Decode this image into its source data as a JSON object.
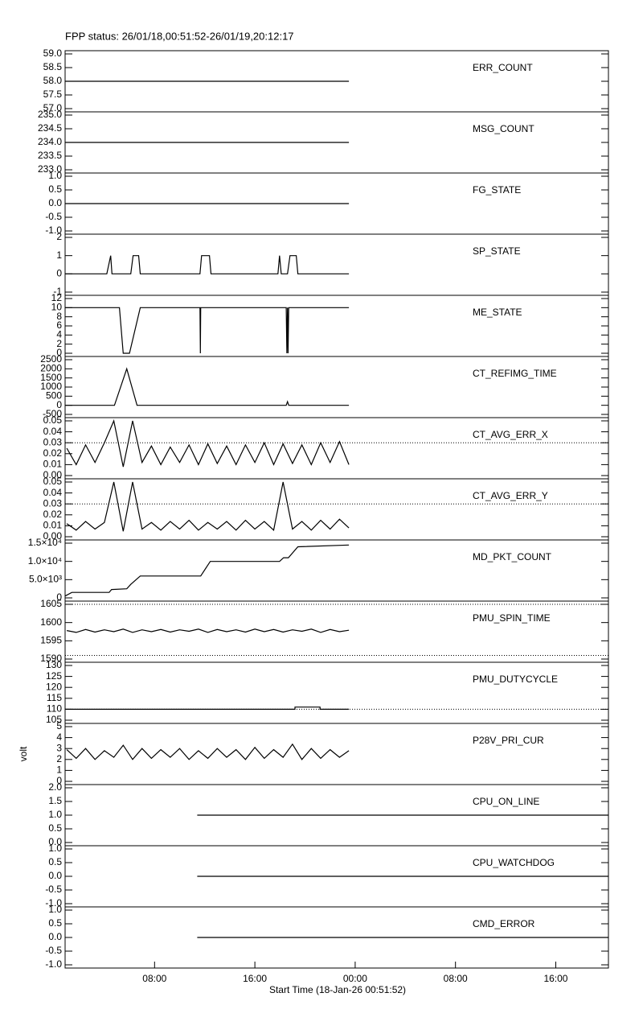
{
  "title": "FPP status: 26/01/18,00:51:52-26/01/19,20:12:17",
  "chart_data": [
    {
      "type": "line",
      "title": "ERR_COUNT",
      "color": "#000000",
      "xlim": [
        0.864,
        44.2
      ],
      "ylim": [
        57,
        59
      ],
      "yticks": [
        {
          "value": 57,
          "label": "57.0"
        },
        {
          "value": 57.5,
          "label": "57.5"
        },
        {
          "value": 58,
          "label": "58.0"
        },
        {
          "value": 58.5,
          "label": "58.5"
        },
        {
          "value": 59,
          "label": "59.0"
        }
      ],
      "x": [
        0.864,
        23.5
      ],
      "values": [
        58,
        58
      ]
    },
    {
      "type": "line",
      "title": "MSG_COUNT",
      "color": "#000000",
      "xlim": [
        0.864,
        44.2
      ],
      "ylim": [
        233,
        235
      ],
      "yticks": [
        {
          "value": 233,
          "label": "233.0"
        },
        {
          "value": 233.5,
          "label": "233.5"
        },
        {
          "value": 234,
          "label": "234.0"
        },
        {
          "value": 234.5,
          "label": "234.5"
        },
        {
          "value": 235,
          "label": "235.0"
        }
      ],
      "x": [
        0.864,
        23.5
      ],
      "values": [
        234,
        234
      ]
    },
    {
      "type": "line",
      "title": "FG_STATE",
      "color": "#000000",
      "xlim": [
        0.864,
        44.2
      ],
      "ylim": [
        -1,
        1
      ],
      "yticks": [
        {
          "value": -1,
          "label": "-1.0"
        },
        {
          "value": -0.5,
          "label": "-0.5"
        },
        {
          "value": 0,
          "label": "0.0"
        },
        {
          "value": 0.5,
          "label": "0.5"
        },
        {
          "value": 1,
          "label": "1.0"
        }
      ],
      "x": [
        0.864,
        23.5
      ],
      "values": [
        0,
        0
      ]
    },
    {
      "type": "line",
      "title": "SP_STATE",
      "color": "#000000",
      "xlim": [
        0.864,
        44.2
      ],
      "ylim": [
        -1,
        2
      ],
      "yticks": [
        -1,
        0,
        1,
        2
      ],
      "x": [
        0.864,
        4.19,
        4.5,
        4.6,
        6.1,
        6.29,
        6.73,
        6.86,
        11.62,
        11.75,
        12.38,
        12.5,
        17.84,
        17.97,
        18.1,
        18.6,
        18.8,
        19.3,
        19.43,
        23.5
      ],
      "values": [
        0,
        0,
        1,
        0,
        0,
        1,
        1,
        0,
        0,
        1,
        1,
        0,
        0,
        1,
        0,
        0,
        1,
        1,
        0,
        0
      ]
    },
    {
      "type": "line",
      "title": "ME_STATE",
      "color": "#000000",
      "xlim": [
        0.864,
        44.2
      ],
      "ylim": [
        0,
        12
      ],
      "yticks": [
        0,
        2,
        4,
        6,
        8,
        10,
        12
      ],
      "x": [
        0.864,
        5.2,
        5.5,
        6.0,
        6.86,
        11.62,
        11.65,
        11.68,
        18.5,
        18.55,
        18.6,
        18.65,
        18.7,
        23.5
      ],
      "values": [
        10,
        10,
        0,
        0,
        10,
        10,
        0,
        10,
        10,
        0,
        10,
        0,
        10,
        10
      ]
    },
    {
      "type": "line",
      "title": "CT_REFIMG_TIME",
      "color": "#000000",
      "xlim": [
        0.864,
        44.2
      ],
      "ylim": [
        -500,
        2500
      ],
      "yticks": [
        -500,
        0,
        500,
        1000,
        1500,
        2000,
        2500
      ],
      "x": [
        0.864,
        4.8,
        5.78,
        6.6,
        18.5,
        18.6,
        18.7,
        23.5
      ],
      "values": [
        0,
        0,
        2000,
        0,
        0,
        200,
        0,
        0
      ]
    },
    {
      "type": "line",
      "title": "CT_AVG_ERR_X",
      "color": "#000000",
      "xlim": [
        0.864,
        44.2
      ],
      "ylim": [
        0,
        0.05
      ],
      "yticks": [
        {
          "value": 0,
          "label": "0.00"
        },
        {
          "value": 0.01,
          "label": "0.01"
        },
        {
          "value": 0.02,
          "label": "0.02"
        },
        {
          "value": 0.03,
          "label": "0.03"
        },
        {
          "value": 0.04,
          "label": "0.04"
        },
        {
          "value": 0.05,
          "label": "0.05"
        }
      ],
      "reference_lines": [
        0.03
      ],
      "x": [
        1,
        1.75,
        2.5,
        3.25,
        4,
        4.75,
        5.5,
        6.25,
        7,
        7.75,
        8.5,
        9.25,
        10,
        10.75,
        11.5,
        12.25,
        13,
        13.75,
        14.5,
        15.25,
        16,
        16.75,
        17.5,
        18.25,
        19,
        19.75,
        20.5,
        21.25,
        22,
        22.75,
        23.5
      ],
      "values": [
        0.025,
        0.01,
        0.028,
        0.012,
        0.03,
        0.05,
        0.008,
        0.05,
        0.012,
        0.027,
        0.01,
        0.026,
        0.012,
        0.028,
        0.01,
        0.029,
        0.011,
        0.027,
        0.01,
        0.028,
        0.012,
        0.03,
        0.01,
        0.029,
        0.011,
        0.028,
        0.01,
        0.03,
        0.012,
        0.031,
        0.01
      ]
    },
    {
      "type": "line",
      "title": "CT_AVG_ERR_Y",
      "color": "#000000",
      "xlim": [
        0.864,
        44.2
      ],
      "ylim": [
        0,
        0.05
      ],
      "yticks": [
        {
          "value": 0,
          "label": "0.00"
        },
        {
          "value": 0.01,
          "label": "0.01"
        },
        {
          "value": 0.02,
          "label": "0.02"
        },
        {
          "value": 0.03,
          "label": "0.03"
        },
        {
          "value": 0.04,
          "label": "0.04"
        },
        {
          "value": 0.05,
          "label": "0.05"
        }
      ],
      "reference_lines": [
        0.03
      ],
      "x": [
        1,
        1.75,
        2.5,
        3.25,
        4,
        4.75,
        5.5,
        6.25,
        7,
        7.75,
        8.5,
        9.25,
        10,
        10.75,
        11.5,
        12.25,
        13,
        13.75,
        14.5,
        15.25,
        16,
        16.75,
        17.5,
        18.25,
        19,
        19.75,
        20.5,
        21.25,
        22,
        22.75,
        23.5
      ],
      "values": [
        0.012,
        0.006,
        0.014,
        0.007,
        0.013,
        0.05,
        0.005,
        0.05,
        0.007,
        0.013,
        0.006,
        0.014,
        0.007,
        0.015,
        0.006,
        0.013,
        0.007,
        0.014,
        0.006,
        0.015,
        0.007,
        0.014,
        0.006,
        0.05,
        0.007,
        0.014,
        0.006,
        0.015,
        0.007,
        0.016,
        0.008
      ]
    },
    {
      "type": "line",
      "title": "MD_PKT_COUNT",
      "color": "#000000",
      "xlim": [
        0.864,
        44.2
      ],
      "ylim": [
        0,
        15000
      ],
      "yticks": [
        0,
        {
          "value": 5000,
          "label": "5.0×10³"
        },
        {
          "value": 10000,
          "label": "1.0×10⁴"
        },
        {
          "value": 15000,
          "label": "1.5×10⁴"
        }
      ],
      "x": [
        0.864,
        1.4,
        4.38,
        4.57,
        5.78,
        6.1,
        6.86,
        11.68,
        12.44,
        17.97,
        18.29,
        18.67,
        19.43,
        23.5
      ],
      "values": [
        500,
        1500,
        1500,
        2300,
        2500,
        3700,
        6000,
        6000,
        10000,
        10000,
        11000,
        11000,
        14000,
        14500
      ]
    },
    {
      "type": "line",
      "title": "PMU_SPIN_TIME",
      "color": "#000000",
      "xlim": [
        0.864,
        44.2
      ],
      "ylim": [
        1590,
        1605
      ],
      "yticks": [
        1590,
        1595,
        1600,
        1605
      ],
      "reference_lines": [
        1591,
        1605
      ],
      "x": [
        1,
        1.75,
        2.5,
        3.25,
        4,
        4.75,
        5.5,
        6.25,
        7,
        7.75,
        8.5,
        9.25,
        10,
        10.75,
        11.5,
        12.25,
        13,
        13.75,
        14.5,
        15.25,
        16,
        16.75,
        17.5,
        18.25,
        19,
        19.75,
        20.5,
        21.25,
        22,
        22.75,
        23.5
      ],
      "values": [
        1597.8,
        1597.3,
        1598.1,
        1597.4,
        1598,
        1597.5,
        1598.2,
        1597.3,
        1598,
        1597.5,
        1598.1,
        1597.4,
        1598,
        1597.6,
        1598.2,
        1597.3,
        1598.1,
        1597.5,
        1598,
        1597.4,
        1598.2,
        1597.5,
        1598.1,
        1597.4,
        1598,
        1597.6,
        1598.2,
        1597.3,
        1598.1,
        1597.5,
        1597.9
      ]
    },
    {
      "type": "line",
      "title": "PMU_DUTYCYCLE",
      "color": "#000000",
      "xlim": [
        0.864,
        44.2
      ],
      "ylim": [
        105,
        130
      ],
      "yticks": [
        105,
        110,
        115,
        120,
        125,
        130
      ],
      "reference_lines": [
        110
      ],
      "x": [
        0.864,
        19.2,
        19.2,
        21.2,
        21.2,
        23.5
      ],
      "values": [
        110,
        110,
        111,
        111,
        110,
        110
      ]
    },
    {
      "type": "line",
      "title": "P28V_PRI_CUR",
      "ylabel": "volt",
      "color": "#000000",
      "xlim": [
        0.864,
        44.2
      ],
      "ylim": [
        0,
        5
      ],
      "yticks": [
        0,
        1,
        2,
        3,
        4,
        5
      ],
      "x": [
        1,
        1.75,
        2.5,
        3.25,
        4,
        4.75,
        5.5,
        6.25,
        7,
        7.75,
        8.5,
        9.25,
        10,
        10.75,
        11.5,
        12.25,
        13,
        13.75,
        14.5,
        15.25,
        16,
        16.75,
        17.5,
        18.25,
        19,
        19.75,
        20.5,
        21.25,
        22,
        22.75,
        23.5
      ],
      "values": [
        2.9,
        2.1,
        3.0,
        2.0,
        2.8,
        2.2,
        3.3,
        2.0,
        3.0,
        2.1,
        2.9,
        2.2,
        3.0,
        2.0,
        2.8,
        2.1,
        3.0,
        2.2,
        2.9,
        2.0,
        3.1,
        2.1,
        2.9,
        2.2,
        3.4,
        2.0,
        3.0,
        2.1,
        2.9,
        2.2,
        2.8
      ]
    },
    {
      "type": "line",
      "title": "CPU_ON_LINE",
      "color": "#000000",
      "xlim": [
        0.864,
        44.2
      ],
      "ylim": [
        0,
        2
      ],
      "yticks": [
        {
          "value": 0,
          "label": "0.0"
        },
        {
          "value": 0.5,
          "label": "0.5"
        },
        {
          "value": 1,
          "label": "1.0"
        },
        {
          "value": 1.5,
          "label": "1.5"
        },
        {
          "value": 2,
          "label": "2.0"
        }
      ],
      "x": [
        11.4,
        44.2
      ],
      "values": [
        1,
        1
      ]
    },
    {
      "type": "line",
      "title": "CPU_WATCHDOG",
      "color": "#000000",
      "xlim": [
        0.864,
        44.2
      ],
      "ylim": [
        -1,
        1
      ],
      "yticks": [
        {
          "value": -1,
          "label": "-1.0"
        },
        {
          "value": -0.5,
          "label": "-0.5"
        },
        {
          "value": 0,
          "label": "0.0"
        },
        {
          "value": 0.5,
          "label": "0.5"
        },
        {
          "value": 1,
          "label": "1.0"
        }
      ],
      "x": [
        11.4,
        44.2
      ],
      "values": [
        0,
        0
      ]
    },
    {
      "type": "line",
      "title": "CMD_ERROR",
      "color": "#000000",
      "xlim": [
        0.864,
        44.2
      ],
      "ylim": [
        -1,
        1
      ],
      "yticks": [
        {
          "value": -1,
          "label": "-1.0"
        },
        {
          "value": -0.5,
          "label": "-0.5"
        },
        {
          "value": 0,
          "label": "0.0"
        },
        {
          "value": 0.5,
          "label": "0.5"
        },
        {
          "value": 1,
          "label": "1.0"
        }
      ],
      "x": [
        11.4,
        44.2
      ],
      "values": [
        0,
        0
      ],
      "xlabel": "Start Time (18-Jan-26 00:51:52)",
      "xticks": [
        {
          "value": 8,
          "label": "08:00"
        },
        {
          "value": 16,
          "label": "16:00"
        },
        {
          "value": 24,
          "label": "00:00"
        },
        {
          "value": 32,
          "label": "08:00"
        },
        {
          "value": 40,
          "label": "16:00"
        }
      ]
    }
  ]
}
